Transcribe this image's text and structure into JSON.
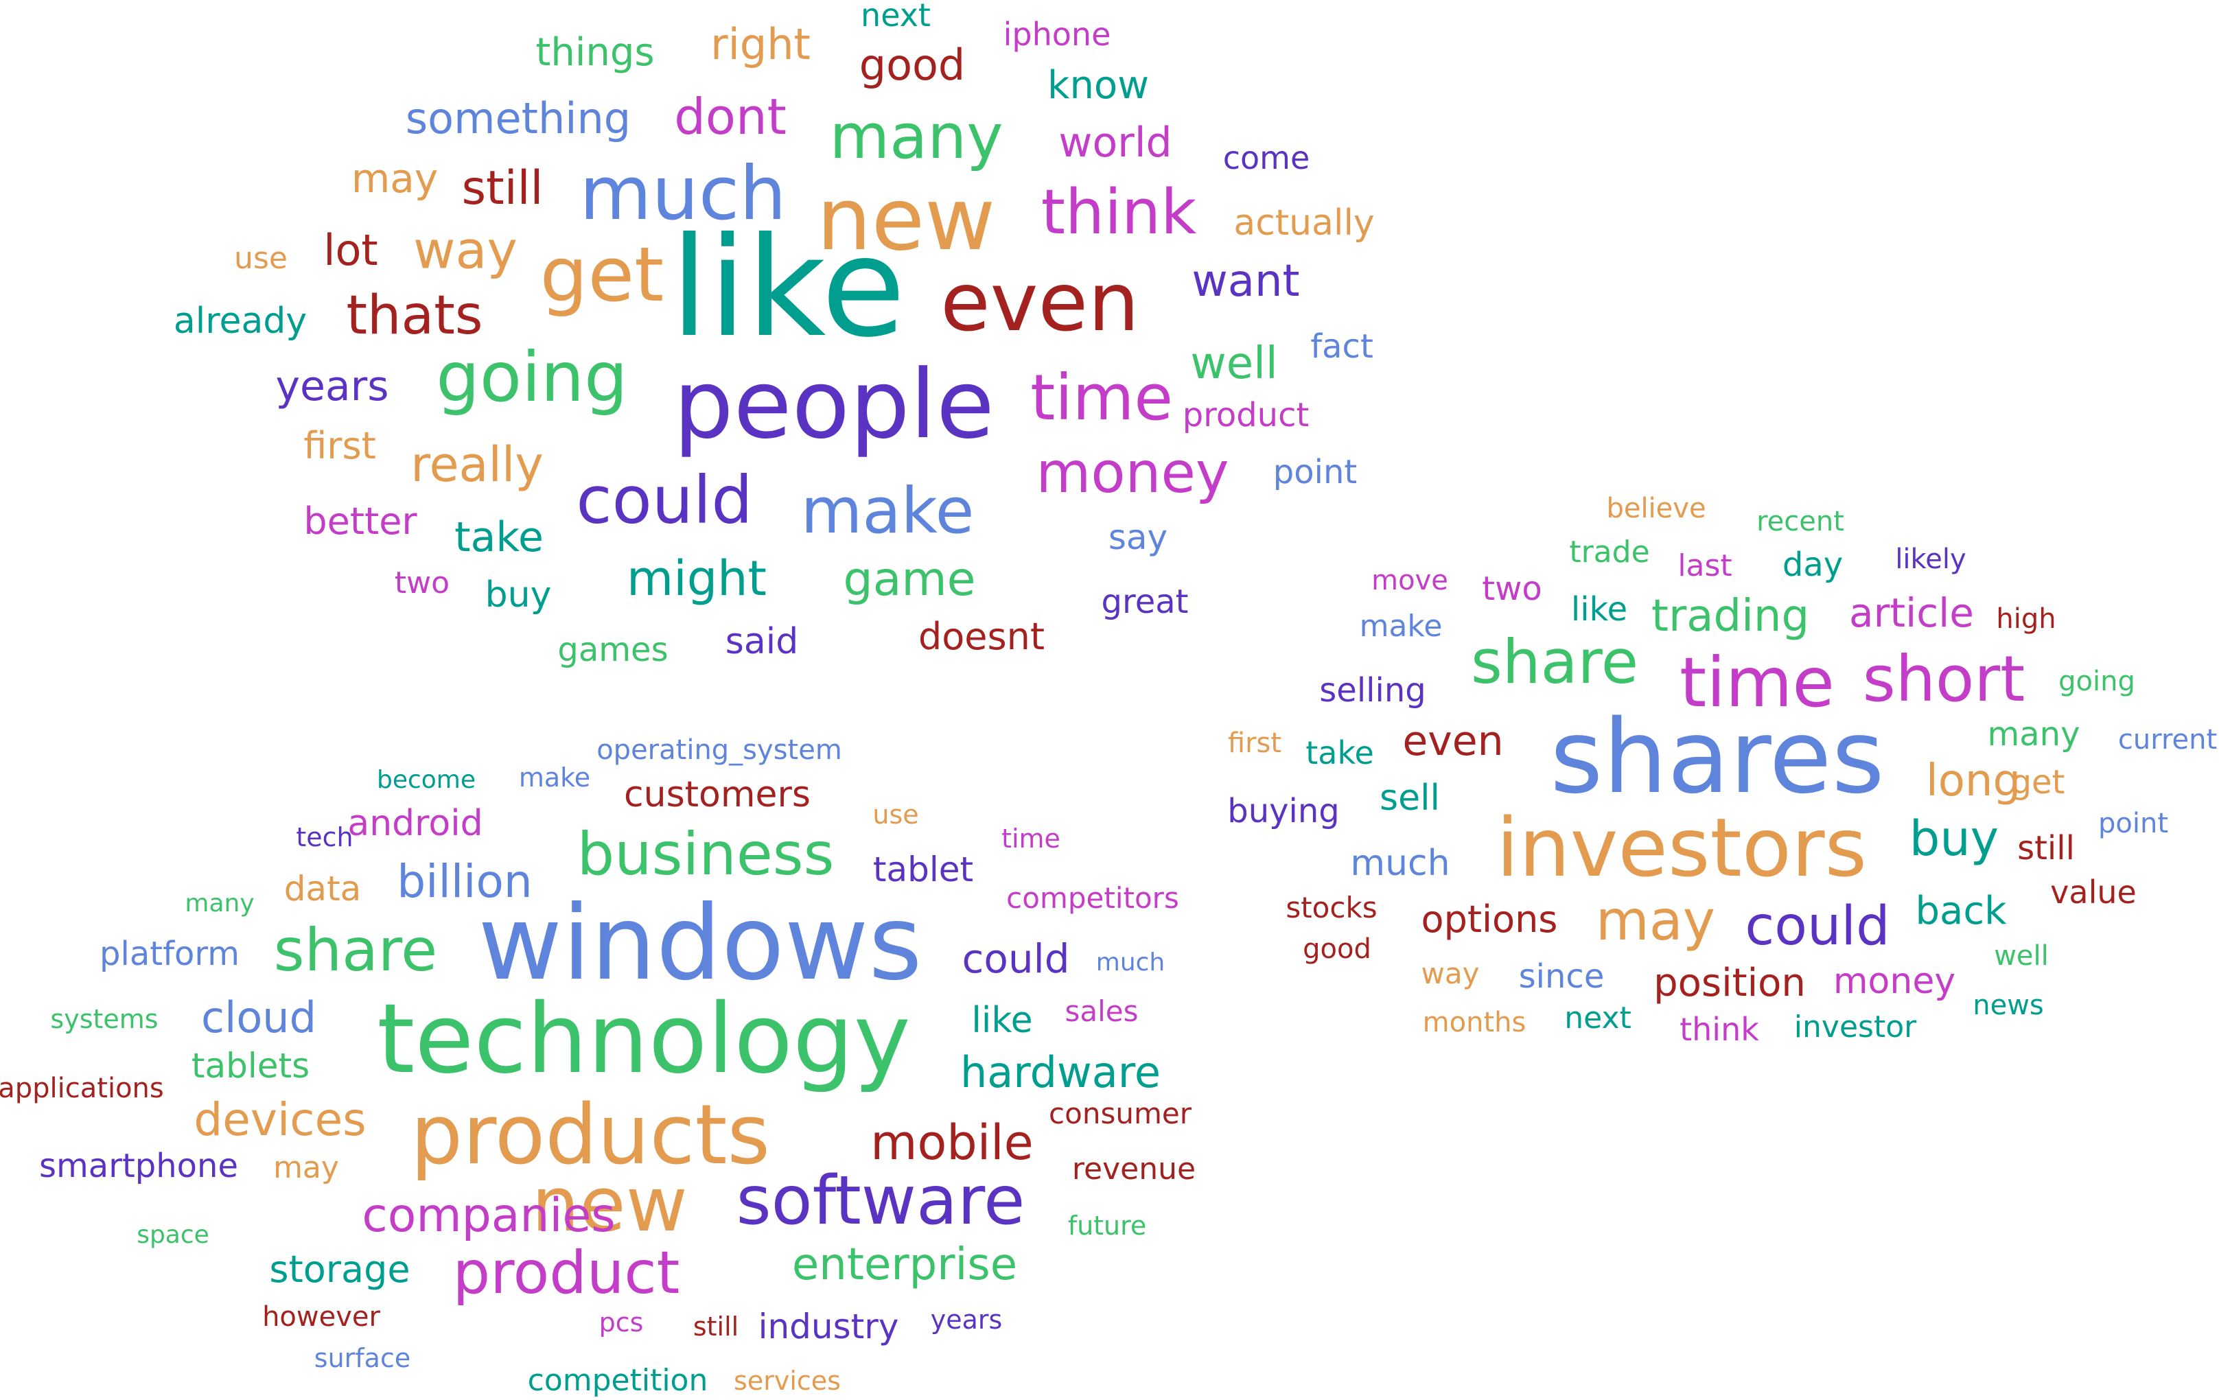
{
  "palette": {
    "teal": "#009E8F",
    "blue": "#5F84DC",
    "orange": "#E39B4F",
    "purple": "#5A33C2",
    "magenta": "#C43DC8",
    "darkred": "#A3221F",
    "green": "#3CC26B"
  },
  "clouds": [
    {
      "id": "general",
      "words": [
        {
          "text": "like",
          "color": "teal"
        },
        {
          "text": "people",
          "color": "purple"
        },
        {
          "text": "new",
          "color": "orange"
        },
        {
          "text": "even",
          "color": "darkred"
        },
        {
          "text": "much",
          "color": "blue"
        },
        {
          "text": "get",
          "color": "orange"
        },
        {
          "text": "going",
          "color": "green"
        },
        {
          "text": "many",
          "color": "green"
        },
        {
          "text": "think",
          "color": "magenta"
        },
        {
          "text": "time",
          "color": "magenta"
        },
        {
          "text": "could",
          "color": "purple"
        },
        {
          "text": "make",
          "color": "blue"
        },
        {
          "text": "money",
          "color": "magenta"
        },
        {
          "text": "thats",
          "color": "darkred"
        },
        {
          "text": "way",
          "color": "orange"
        },
        {
          "text": "dont",
          "color": "magenta"
        },
        {
          "text": "something",
          "color": "blue"
        },
        {
          "text": "still",
          "color": "darkred"
        },
        {
          "text": "really",
          "color": "orange"
        },
        {
          "text": "might",
          "color": "teal"
        },
        {
          "text": "game",
          "color": "green"
        },
        {
          "text": "want",
          "color": "purple"
        },
        {
          "text": "well",
          "color": "green"
        },
        {
          "text": "good",
          "color": "darkred"
        },
        {
          "text": "right",
          "color": "orange"
        },
        {
          "text": "things",
          "color": "green"
        },
        {
          "text": "know",
          "color": "teal"
        },
        {
          "text": "world",
          "color": "magenta"
        },
        {
          "text": "actually",
          "color": "orange"
        },
        {
          "text": "years",
          "color": "purple"
        },
        {
          "text": "lot",
          "color": "darkred"
        },
        {
          "text": "take",
          "color": "teal"
        },
        {
          "text": "first",
          "color": "orange"
        },
        {
          "text": "better",
          "color": "magenta"
        },
        {
          "text": "doesnt",
          "color": "darkred"
        },
        {
          "text": "already",
          "color": "teal"
        },
        {
          "text": "may",
          "color": "orange"
        },
        {
          "text": "buy",
          "color": "teal"
        },
        {
          "text": "said",
          "color": "purple"
        },
        {
          "text": "games",
          "color": "green"
        },
        {
          "text": "great",
          "color": "purple"
        },
        {
          "text": "say",
          "color": "blue"
        },
        {
          "text": "fact",
          "color": "blue"
        },
        {
          "text": "product",
          "color": "magenta"
        },
        {
          "text": "point",
          "color": "blue"
        },
        {
          "text": "come",
          "color": "purple"
        },
        {
          "text": "use",
          "color": "orange"
        },
        {
          "text": "two",
          "color": "magenta"
        },
        {
          "text": "iphone",
          "color": "magenta"
        },
        {
          "text": "next",
          "color": "teal"
        }
      ]
    },
    {
      "id": "technology",
      "words": [
        {
          "text": "windows",
          "color": "blue"
        },
        {
          "text": "technology",
          "color": "green"
        },
        {
          "text": "products",
          "color": "orange"
        },
        {
          "text": "new",
          "color": "orange"
        },
        {
          "text": "software",
          "color": "purple"
        },
        {
          "text": "business",
          "color": "green"
        },
        {
          "text": "share",
          "color": "green"
        },
        {
          "text": "product",
          "color": "magenta"
        },
        {
          "text": "mobile",
          "color": "darkred"
        },
        {
          "text": "companies",
          "color": "magenta"
        },
        {
          "text": "devices",
          "color": "orange"
        },
        {
          "text": "enterprise",
          "color": "green"
        },
        {
          "text": "hardware",
          "color": "teal"
        },
        {
          "text": "billion",
          "color": "blue"
        },
        {
          "text": "cloud",
          "color": "blue"
        },
        {
          "text": "could",
          "color": "purple"
        },
        {
          "text": "storage",
          "color": "teal"
        },
        {
          "text": "customers",
          "color": "darkred"
        },
        {
          "text": "tablet",
          "color": "purple"
        },
        {
          "text": "android",
          "color": "magenta"
        },
        {
          "text": "like",
          "color": "teal"
        },
        {
          "text": "data",
          "color": "orange"
        },
        {
          "text": "tablets",
          "color": "green"
        },
        {
          "text": "industry",
          "color": "purple"
        },
        {
          "text": "smartphone",
          "color": "purple"
        },
        {
          "text": "platform",
          "color": "blue"
        },
        {
          "text": "competition",
          "color": "teal"
        },
        {
          "text": "consumer",
          "color": "darkred"
        },
        {
          "text": "revenue",
          "color": "darkred"
        },
        {
          "text": "may",
          "color": "orange"
        },
        {
          "text": "sales",
          "color": "magenta"
        },
        {
          "text": "competitors",
          "color": "magenta"
        },
        {
          "text": "operating_system",
          "color": "blue"
        },
        {
          "text": "applications",
          "color": "darkred"
        },
        {
          "text": "systems",
          "color": "green"
        },
        {
          "text": "however",
          "color": "darkred"
        },
        {
          "text": "still",
          "color": "darkred"
        },
        {
          "text": "years",
          "color": "purple"
        },
        {
          "text": "services",
          "color": "orange"
        },
        {
          "text": "surface",
          "color": "blue"
        },
        {
          "text": "space",
          "color": "green"
        },
        {
          "text": "future",
          "color": "green"
        },
        {
          "text": "pcs",
          "color": "magenta"
        },
        {
          "text": "much",
          "color": "blue"
        },
        {
          "text": "use",
          "color": "orange"
        },
        {
          "text": "time",
          "color": "magenta"
        },
        {
          "text": "tech",
          "color": "purple"
        },
        {
          "text": "many",
          "color": "green"
        },
        {
          "text": "become",
          "color": "teal"
        },
        {
          "text": "make",
          "color": "blue"
        }
      ]
    },
    {
      "id": "investing",
      "words": [
        {
          "text": "shares",
          "color": "blue"
        },
        {
          "text": "investors",
          "color": "orange"
        },
        {
          "text": "time",
          "color": "magenta"
        },
        {
          "text": "short",
          "color": "magenta"
        },
        {
          "text": "share",
          "color": "green"
        },
        {
          "text": "may",
          "color": "orange"
        },
        {
          "text": "could",
          "color": "purple"
        },
        {
          "text": "buy",
          "color": "teal"
        },
        {
          "text": "long",
          "color": "orange"
        },
        {
          "text": "even",
          "color": "darkred"
        },
        {
          "text": "trading",
          "color": "green"
        },
        {
          "text": "article",
          "color": "magenta"
        },
        {
          "text": "position",
          "color": "darkred"
        },
        {
          "text": "back",
          "color": "teal"
        },
        {
          "text": "options",
          "color": "darkred"
        },
        {
          "text": "money",
          "color": "magenta"
        },
        {
          "text": "since",
          "color": "blue"
        },
        {
          "text": "much",
          "color": "blue"
        },
        {
          "text": "sell",
          "color": "teal"
        },
        {
          "text": "selling",
          "color": "purple"
        },
        {
          "text": "buying",
          "color": "purple"
        },
        {
          "text": "take",
          "color": "teal"
        },
        {
          "text": "like",
          "color": "teal"
        },
        {
          "text": "many",
          "color": "green"
        },
        {
          "text": "get",
          "color": "orange"
        },
        {
          "text": "still",
          "color": "darkred"
        },
        {
          "text": "value",
          "color": "darkred"
        },
        {
          "text": "stocks",
          "color": "darkred"
        },
        {
          "text": "two",
          "color": "magenta"
        },
        {
          "text": "day",
          "color": "teal"
        },
        {
          "text": "last",
          "color": "magenta"
        },
        {
          "text": "trade",
          "color": "green"
        },
        {
          "text": "make",
          "color": "blue"
        },
        {
          "text": "investor",
          "color": "teal"
        },
        {
          "text": "think",
          "color": "magenta"
        },
        {
          "text": "next",
          "color": "teal"
        },
        {
          "text": "months",
          "color": "orange"
        },
        {
          "text": "way",
          "color": "orange"
        },
        {
          "text": "good",
          "color": "darkred"
        },
        {
          "text": "first",
          "color": "orange"
        },
        {
          "text": "going",
          "color": "green"
        },
        {
          "text": "current",
          "color": "blue"
        },
        {
          "text": "point",
          "color": "blue"
        },
        {
          "text": "well",
          "color": "green"
        },
        {
          "text": "news",
          "color": "teal"
        },
        {
          "text": "high",
          "color": "darkred"
        },
        {
          "text": "likely",
          "color": "purple"
        },
        {
          "text": "recent",
          "color": "green"
        },
        {
          "text": "believe",
          "color": "orange"
        },
        {
          "text": "move",
          "color": "magenta"
        }
      ]
    }
  ]
}
